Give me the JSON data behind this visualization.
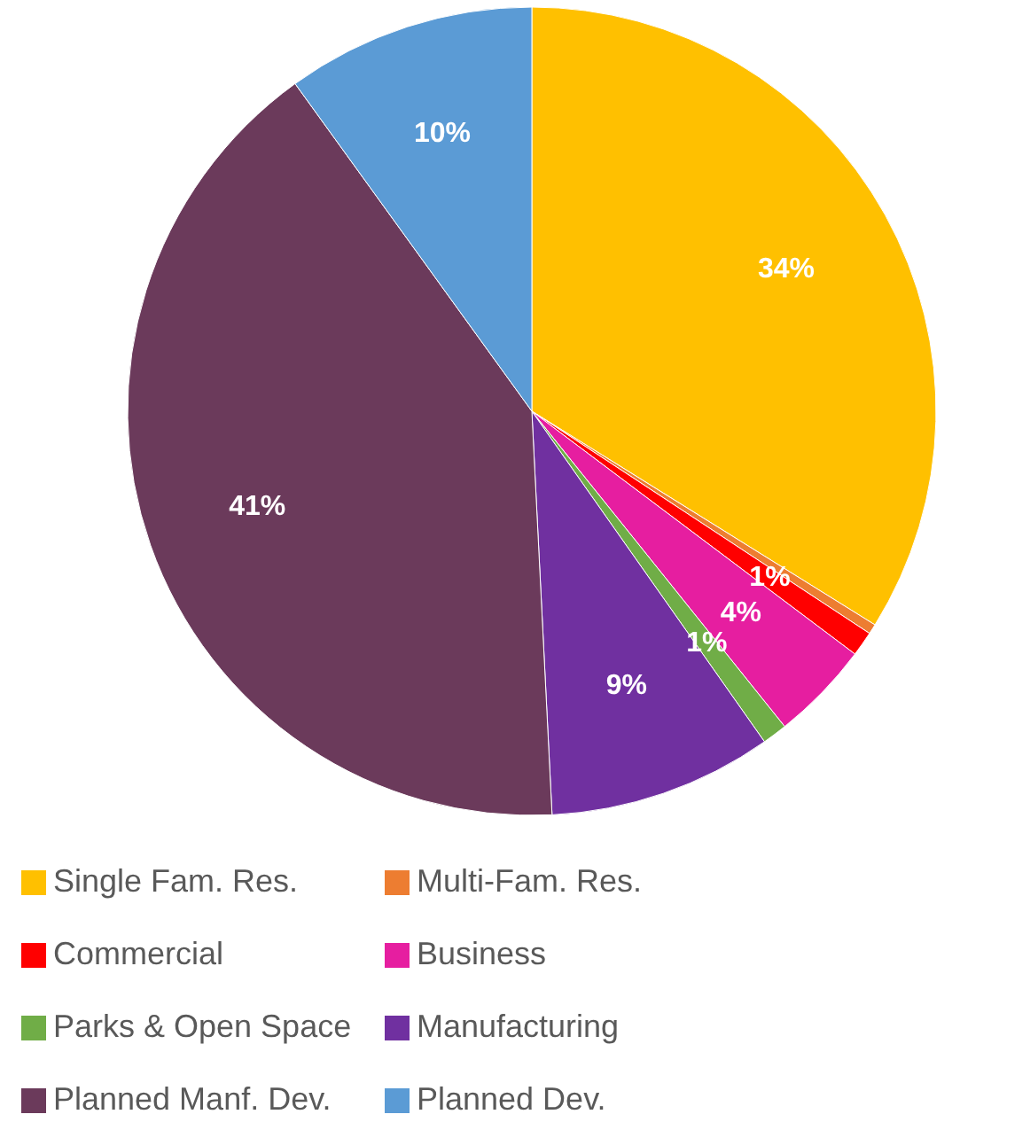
{
  "chart_data": {
    "type": "pie",
    "categories": [
      "Single Fam. Res.",
      "Multi-Fam. Res.",
      "Commercial",
      "Business",
      "Parks & Open Space",
      "Manufacturing",
      "Planned Manf. Dev.",
      "Planned Dev."
    ],
    "values": [
      34,
      0.4,
      1,
      4,
      1,
      9,
      41,
      10
    ],
    "value_labels": [
      "34%",
      null,
      "1%",
      "4%",
      "1%",
      "9%",
      "41%",
      "10%"
    ],
    "colors": [
      "#ffc000",
      "#ed7d31",
      "#ff0000",
      "#e61ea0",
      "#70ad47",
      "#7030a0",
      "#6b3a5b",
      "#5b9bd5"
    ],
    "legend": "bottom"
  }
}
